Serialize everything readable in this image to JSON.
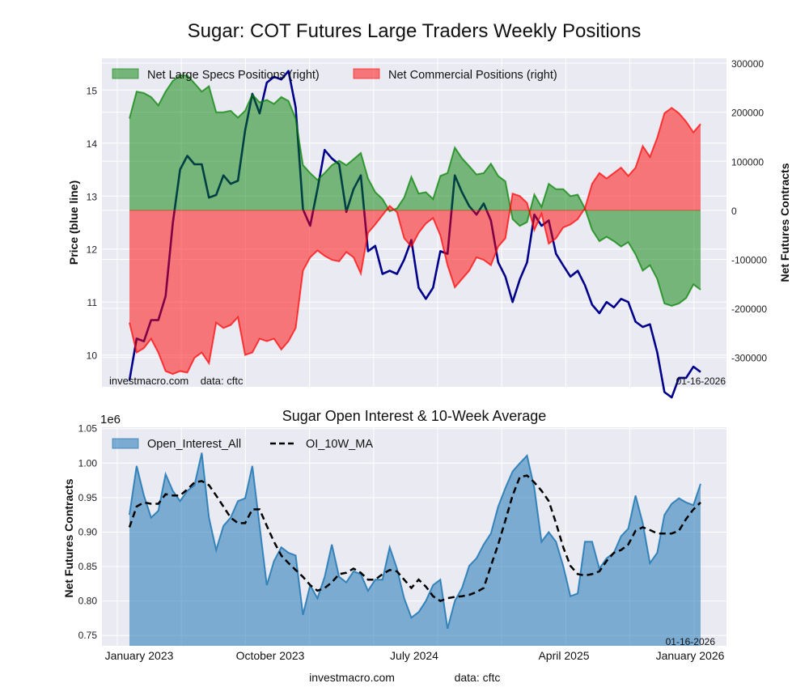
{
  "title": "Sugar: COT Futures Large Traders Weekly Positions",
  "footer": {
    "site": "investmacro.com",
    "source": "data: cftc"
  },
  "colors": {
    "background": "#EAEAF2",
    "specs": "#008000",
    "commercial": "#FF0000",
    "price": "#00008B",
    "open_interest": "#1F77B4",
    "moving_average": "#000000"
  },
  "chart_data": [
    {
      "type": "area",
      "title": "",
      "ylabel_left": "Price (blue line)",
      "ylabel_right": "Net Futures Contracts",
      "watermark": "investmacro.com    data: cftc",
      "date_label": "01-16-2026",
      "legend_position": "top-left",
      "grid": true,
      "x_tick_labels": [
        "January 2023",
        "October 2023",
        "July 2024",
        "April 2025",
        "January 2026"
      ],
      "ylim_left": [
        9.4,
        15.6
      ],
      "yticks_left": [
        10,
        11,
        12,
        13,
        14,
        15
      ],
      "ylim_right": [
        -360000,
        310000
      ],
      "yticks_right": [
        300000,
        200000,
        100000,
        0,
        -100000,
        -200000,
        -300000
      ],
      "x": [
        "2023-01-03",
        "2023-01-17",
        "2023-01-31",
        "2023-02-14",
        "2023-02-28",
        "2023-03-14",
        "2023-03-28",
        "2023-04-11",
        "2023-04-25",
        "2023-05-09",
        "2023-05-23",
        "2023-06-06",
        "2023-06-20",
        "2023-07-04",
        "2023-07-18",
        "2023-08-01",
        "2023-08-15",
        "2023-08-29",
        "2023-09-12",
        "2023-09-26",
        "2023-10-10",
        "2023-10-24",
        "2023-11-07",
        "2023-11-21",
        "2023-12-05",
        "2023-12-19",
        "2024-01-02",
        "2024-01-16",
        "2024-01-30",
        "2024-02-13",
        "2024-02-27",
        "2024-03-12",
        "2024-03-26",
        "2024-04-09",
        "2024-04-23",
        "2024-05-07",
        "2024-05-21",
        "2024-06-04",
        "2024-06-18",
        "2024-07-02",
        "2024-07-16",
        "2024-07-30",
        "2024-08-13",
        "2024-08-27",
        "2024-09-10",
        "2024-09-24",
        "2024-10-08",
        "2024-10-22",
        "2024-11-05",
        "2024-11-19",
        "2024-12-03",
        "2024-12-17",
        "2024-12-31",
        "2025-01-14",
        "2025-01-28",
        "2025-02-11",
        "2025-02-25",
        "2025-03-11",
        "2025-03-25",
        "2025-04-08",
        "2025-04-22",
        "2025-05-06",
        "2025-05-20",
        "2025-06-03",
        "2025-06-17",
        "2025-07-01",
        "2025-07-15",
        "2025-07-29",
        "2025-08-12",
        "2025-08-26",
        "2025-09-09",
        "2025-09-23",
        "2025-10-07",
        "2025-10-21",
        "2025-11-04",
        "2025-11-18",
        "2025-12-02",
        "2025-12-16",
        "2025-12-30",
        "2026-01-13"
      ],
      "series": [
        {
          "name": "Net Large Specs Positions (right)",
          "axis": "right",
          "values": [
            187000,
            242000,
            239000,
            231000,
            214000,
            242000,
            264000,
            275000,
            275000,
            259000,
            242000,
            253000,
            200000,
            200000,
            203000,
            189000,
            203000,
            236000,
            220000,
            225000,
            217000,
            231000,
            223000,
            187000,
            92000,
            76000,
            62000,
            76000,
            92000,
            101000,
            92000,
            104000,
            117000,
            65000,
            37000,
            23000,
            -2000,
            4000,
            26000,
            68000,
            34000,
            37000,
            23000,
            70000,
            76000,
            128000,
            106000,
            90000,
            73000,
            76000,
            95000,
            70000,
            59000,
            -18000,
            -32000,
            -24000,
            32000,
            7000,
            54000,
            43000,
            43000,
            29000,
            32000,
            4000,
            -40000,
            -63000,
            -54000,
            -63000,
            -74000,
            -65000,
            -90000,
            -123000,
            -112000,
            -140000,
            -190000,
            -195000,
            -190000,
            -179000,
            -151000,
            -162000
          ]
        },
        {
          "name": "Net Commercial Positions (right)",
          "axis": "right",
          "values": [
            -229000,
            -290000,
            -281000,
            -262000,
            -290000,
            -328000,
            -334000,
            -328000,
            -331000,
            -301000,
            -290000,
            -312000,
            -229000,
            -240000,
            -234000,
            -218000,
            -295000,
            -290000,
            -262000,
            -267000,
            -262000,
            -284000,
            -267000,
            -240000,
            -123000,
            -96000,
            -82000,
            -93000,
            -101000,
            -104000,
            -85000,
            -96000,
            -129000,
            -46000,
            -29000,
            -10000,
            9000,
            -4000,
            -57000,
            -74000,
            -46000,
            -27000,
            -16000,
            -51000,
            -112000,
            -157000,
            -140000,
            -123000,
            -96000,
            -101000,
            -112000,
            -74000,
            -57000,
            34000,
            29000,
            15000,
            -40000,
            -7000,
            -68000,
            -57000,
            -35000,
            -29000,
            -18000,
            4000,
            54000,
            76000,
            65000,
            76000,
            87000,
            70000,
            87000,
            131000,
            109000,
            148000,
            198000,
            209000,
            198000,
            181000,
            159000,
            176000
          ]
        },
        {
          "axis": "left",
          "values": [
            9.52,
            10.31,
            10.26,
            10.66,
            10.66,
            11.11,
            12.49,
            13.5,
            13.76,
            13.6,
            13.6,
            12.97,
            13.02,
            13.39,
            13.23,
            13.29,
            14.24,
            14.93,
            14.56,
            15.14,
            15.25,
            15.2,
            15.36,
            14.67,
            12.75,
            12.44,
            13.13,
            13.87,
            13.71,
            13.6,
            12.7,
            13.13,
            13.39,
            11.96,
            12.06,
            11.53,
            11.59,
            11.53,
            11.8,
            12.17,
            11.27,
            11.06,
            11.27,
            11.96,
            11.91,
            13.39,
            13.07,
            12.81,
            12.65,
            12.86,
            12.54,
            11.75,
            11.48,
            11.0,
            11.43,
            11.75,
            12.65,
            12.44,
            12.54,
            11.91,
            11.69,
            11.48,
            11.59,
            11.32,
            10.95,
            10.79,
            11.0,
            10.9,
            11.06,
            11.0,
            10.63,
            10.53,
            10.58,
            10.05,
            9.3,
            9.2,
            9.57,
            9.57,
            9.78,
            9.68
          ]
        }
      ]
    },
    {
      "type": "area",
      "title": "Sugar Open Interest & 10-Week Average",
      "ylabel": "Net Futures Contracts",
      "y_scale_label": "1e6",
      "date_label": "01-16-2026",
      "legend_position": "top-left",
      "grid": true,
      "ylim": [
        0.735,
        1.052
      ],
      "yticks": [
        "0.75",
        "0.80",
        "0.85",
        "0.90",
        "0.95",
        "1.00",
        "1.05"
      ],
      "x_tick_labels": [
        "January 2023",
        "October 2023",
        "July 2024",
        "April 2025",
        "January 2026"
      ],
      "series": [
        {
          "name": "Open_Interest_All",
          "style": "filled area",
          "values": [
            0.925,
            0.996,
            0.953,
            0.921,
            0.931,
            0.984,
            0.96,
            0.945,
            0.96,
            0.968,
            1.015,
            0.921,
            0.874,
            0.909,
            0.921,
            0.945,
            0.949,
            0.996,
            0.909,
            0.823,
            0.858,
            0.878,
            0.87,
            0.866,
            0.78,
            0.823,
            0.804,
            0.835,
            0.882,
            0.835,
            0.827,
            0.843,
            0.839,
            0.815,
            0.831,
            0.831,
            0.878,
            0.847,
            0.804,
            0.776,
            0.784,
            0.8,
            0.823,
            0.831,
            0.76,
            0.8,
            0.819,
            0.851,
            0.862,
            0.882,
            0.898,
            0.937,
            0.964,
            0.988,
            1.0,
            1.011,
            0.964,
            0.886,
            0.9,
            0.886,
            0.851,
            0.807,
            0.811,
            0.886,
            0.886,
            0.847,
            0.862,
            0.87,
            0.894,
            0.905,
            0.953,
            0.913,
            0.855,
            0.87,
            0.925,
            0.941,
            0.949,
            0.943,
            0.939,
            0.97
          ]
        },
        {
          "name": "OI_10W_MA",
          "style": "dashed line",
          "values": [
            0.907,
            0.937,
            0.943,
            0.941,
            0.941,
            0.955,
            0.953,
            0.953,
            0.962,
            0.972,
            0.974,
            0.968,
            0.953,
            0.937,
            0.921,
            0.913,
            0.913,
            0.933,
            0.933,
            0.909,
            0.886,
            0.866,
            0.855,
            0.845,
            0.835,
            0.823,
            0.815,
            0.819,
            0.827,
            0.839,
            0.841,
            0.847,
            0.841,
            0.831,
            0.831,
            0.839,
            0.845,
            0.843,
            0.831,
            0.819,
            0.831,
            0.821,
            0.807,
            0.8,
            0.804,
            0.806,
            0.807,
            0.809,
            0.813,
            0.819,
            0.851,
            0.882,
            0.917,
            0.953,
            0.98,
            0.982,
            0.972,
            0.96,
            0.945,
            0.913,
            0.878,
            0.851,
            0.839,
            0.837,
            0.839,
            0.843,
            0.858,
            0.87,
            0.874,
            0.882,
            0.902,
            0.907,
            0.903,
            0.898,
            0.898,
            0.898,
            0.902,
            0.919,
            0.933,
            0.943
          ]
        }
      ]
    }
  ]
}
